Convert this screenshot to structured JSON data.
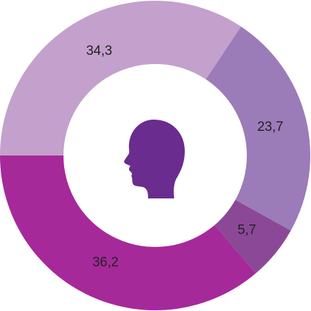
{
  "chart_data": {
    "type": "donut",
    "values": [
      34.3,
      23.7,
      5.7,
      36.2
    ],
    "value_labels": [
      "34,3",
      "23,7",
      "5,7",
      "36,2"
    ],
    "colors": [
      "#c4a0cc",
      "#9c7bb9",
      "#8b4896",
      "#a6299a"
    ]
  }
}
